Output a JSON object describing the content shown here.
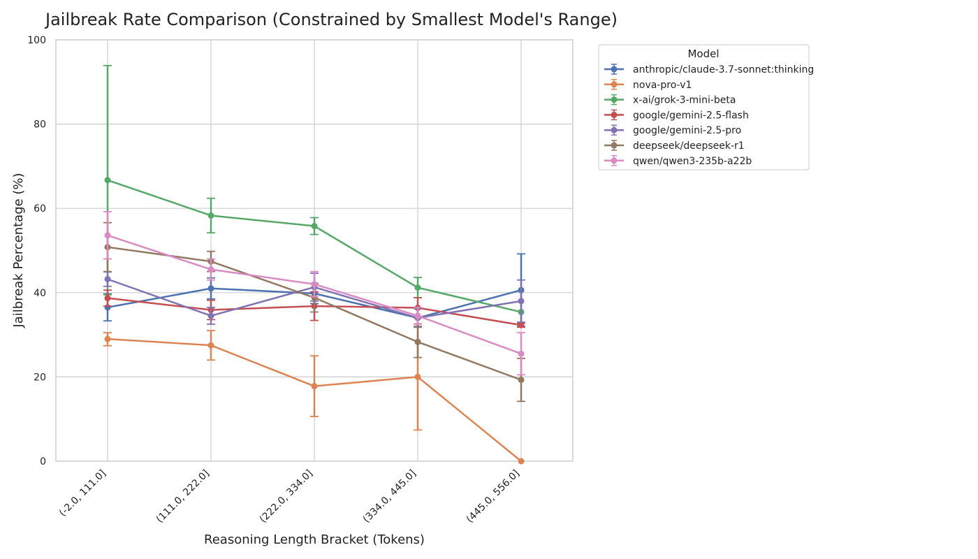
{
  "chart_data": {
    "type": "line",
    "title": "Jailbreak Rate Comparison (Constrained by Smallest Model's Range)",
    "xlabel": "Reasoning Length Bracket (Tokens)",
    "ylabel": "Jailbreak Percentage (%)",
    "categories": [
      "(-2.0, 111.0]",
      "(111.0, 222.0]",
      "(222.0, 334.0]",
      "(334.0, 445.0]",
      "(445.0, 556.0]"
    ],
    "ylim": [
      0,
      100
    ],
    "yticks": [
      "0",
      "20",
      "40",
      "60",
      "80",
      "100"
    ],
    "grid": true,
    "legend_title": "Model",
    "legend_position": "outside-upper-right",
    "series": [
      {
        "name": "anthropic/claude-3.7-sonnet:thinking",
        "color": "#4c72b0",
        "values": [
          36.5,
          41.0,
          39.8,
          34.0,
          40.6
        ],
        "err_low": [
          33.3,
          38.5,
          37.4,
          31.8,
          32.0
        ],
        "err_high": [
          39.7,
          43.5,
          42.2,
          36.2,
          49.2
        ]
      },
      {
        "name": "nova-pro-v1",
        "color": "#dd8452",
        "values": [
          29.0,
          27.5,
          17.8,
          20.0,
          0.0
        ],
        "err_low": [
          27.4,
          24.0,
          10.6,
          7.4,
          0.0
        ],
        "err_high": [
          30.5,
          31.0,
          25.0,
          32.6,
          0.0
        ]
      },
      {
        "name": "x-ai/grok-3-mini-beta",
        "color": "#55a868",
        "values": [
          66.7,
          58.3,
          55.8,
          41.2,
          35.4
        ],
        "err_low": [
          39.5,
          54.2,
          53.8,
          38.8,
          35.4
        ],
        "err_high": [
          93.9,
          62.4,
          57.8,
          43.6,
          35.4
        ]
      },
      {
        "name": "google/gemini-2.5-flash",
        "color": "#c44e52",
        "values": [
          38.7,
          35.9,
          36.8,
          36.4,
          32.3
        ],
        "err_low": [
          36.8,
          33.6,
          33.4,
          34.0,
          31.8
        ],
        "err_high": [
          40.6,
          38.2,
          40.2,
          38.8,
          32.8
        ]
      },
      {
        "name": "google/gemini-2.5-pro",
        "color": "#8172b3",
        "values": [
          43.2,
          34.5,
          41.3,
          34.0,
          38.0
        ],
        "err_low": [
          41.5,
          32.5,
          38.0,
          31.8,
          33.0
        ],
        "err_high": [
          44.9,
          36.5,
          44.6,
          36.2,
          43.0
        ]
      },
      {
        "name": "deepseek/deepseek-r1",
        "color": "#937860",
        "values": [
          50.8,
          47.4,
          38.8,
          28.3,
          19.3
        ],
        "err_low": [
          45.0,
          45.0,
          35.4,
          24.6,
          14.2
        ],
        "err_high": [
          56.6,
          49.8,
          42.2,
          32.0,
          24.4
        ]
      },
      {
        "name": "qwen/qwen3-235b-a22b",
        "color": "#da8bc3",
        "values": [
          53.6,
          45.5,
          42.0,
          34.5,
          25.5
        ],
        "err_low": [
          48.0,
          43.0,
          39.0,
          32.5,
          20.5
        ],
        "err_high": [
          59.2,
          48.0,
          45.0,
          36.5,
          30.5
        ]
      }
    ]
  }
}
